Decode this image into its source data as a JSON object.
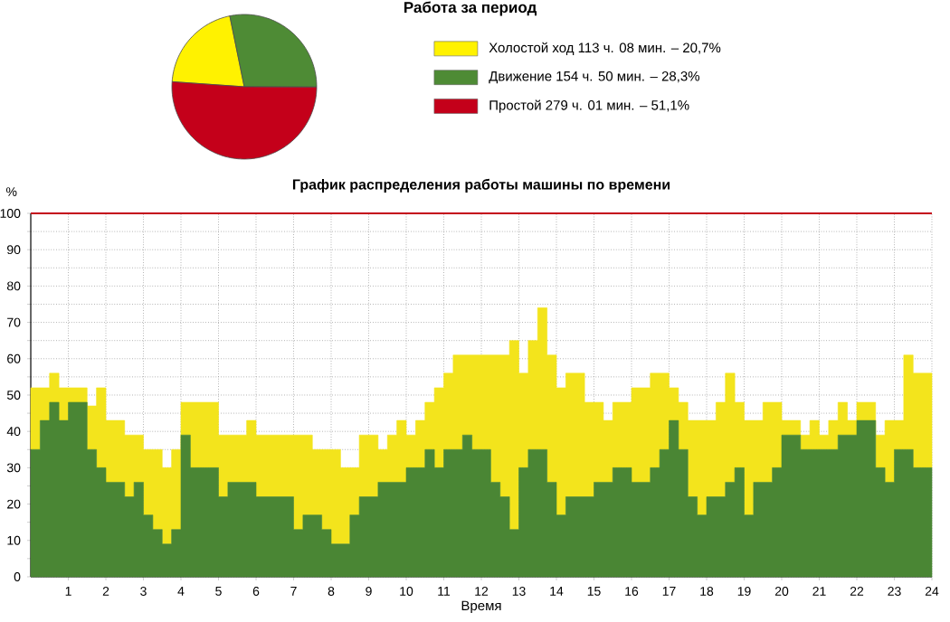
{
  "chart_data": [
    {
      "type": "pie",
      "title": "Работа за период",
      "categories": [
        "Холостой ход 113 ч. 08 мин. – 20,7%",
        "Движение 154 ч. 50 мин. – 28,3%",
        "Простой 279 ч. 01 мин. – 51,1%"
      ],
      "values": [
        20.7,
        28.3,
        51.1
      ],
      "colors": [
        "#fff200",
        "#4e8b35",
        "#c4001a"
      ],
      "legend": "right"
    },
    {
      "type": "area",
      "title": "График распределения работы машины по времени",
      "xlabel": "Время",
      "ylabel": "%",
      "stacked": true,
      "grid": true,
      "legend": false,
      "x": [
        0,
        0.25,
        0.5,
        0.75,
        1,
        1.25,
        1.5,
        1.75,
        2,
        2.25,
        2.5,
        2.75,
        3,
        3.25,
        3.5,
        3.75,
        4,
        4.25,
        4.5,
        4.75,
        5,
        5.25,
        5.5,
        5.75,
        6,
        6.25,
        6.5,
        6.75,
        7,
        7.25,
        7.5,
        7.75,
        8,
        8.25,
        8.5,
        8.75,
        9,
        9.25,
        9.5,
        9.75,
        10,
        10.25,
        10.5,
        10.75,
        11,
        11.25,
        11.5,
        11.75,
        12,
        12.25,
        12.5,
        12.75,
        13,
        13.25,
        13.5,
        13.75,
        14,
        14.25,
        14.5,
        14.75,
        15,
        15.25,
        15.5,
        15.75,
        16,
        16.25,
        16.5,
        16.75,
        17,
        17.25,
        17.5,
        17.75,
        18,
        18.25,
        18.5,
        18.75,
        19,
        19.25,
        19.5,
        19.75,
        20,
        20.25,
        20.5,
        20.75,
        21,
        21.25,
        21.5,
        21.75,
        22,
        22.25,
        22.5,
        22.75,
        23,
        23.25,
        23.5,
        23.75,
        24
      ],
      "series": [
        {
          "color": "#4a8634",
          "values": [
            35,
            43,
            48,
            43,
            48,
            48,
            35,
            30,
            26,
            26,
            22,
            26,
            17,
            13,
            9,
            13,
            39,
            30,
            30,
            30,
            22,
            26,
            26,
            26,
            22,
            22,
            22,
            22,
            13,
            17,
            17,
            13,
            9,
            9,
            17,
            22,
            22,
            26,
            26,
            26,
            30,
            30,
            35,
            30,
            35,
            35,
            39,
            35,
            35,
            26,
            22,
            13,
            30,
            35,
            35,
            26,
            17,
            22,
            22,
            22,
            26,
            26,
            30,
            30,
            26,
            26,
            30,
            35,
            43,
            35,
            22,
            17,
            22,
            22,
            26,
            30,
            17,
            26,
            26,
            30,
            39,
            39,
            35,
            35,
            35,
            35,
            39,
            39,
            43,
            43,
            30,
            26,
            35,
            35,
            30,
            30,
            30
          ]
        },
        {
          "color": "#f3e41c",
          "values": [
            17,
            9,
            8,
            9,
            4,
            4,
            12,
            22,
            17,
            17,
            17,
            13,
            18,
            22,
            21,
            22,
            9,
            18,
            18,
            18,
            17,
            13,
            13,
            17,
            17,
            17,
            17,
            17,
            26,
            22,
            18,
            22,
            26,
            21,
            13,
            17,
            17,
            9,
            13,
            17,
            9,
            13,
            13,
            22,
            21,
            26,
            22,
            26,
            26,
            35,
            39,
            52,
            26,
            30,
            39,
            35,
            35,
            34,
            34,
            26,
            22,
            17,
            18,
            18,
            26,
            26,
            26,
            21,
            9,
            13,
            21,
            26,
            21,
            26,
            30,
            18,
            26,
            17,
            22,
            18,
            4,
            4,
            4,
            8,
            4,
            8,
            9,
            4,
            5,
            5,
            9,
            17,
            8,
            26,
            26,
            26,
            26
          ]
        }
      ],
      "xlim": [
        0,
        24
      ],
      "ylim": [
        0,
        100
      ],
      "xticks": [
        1,
        2,
        3,
        4,
        5,
        6,
        7,
        8,
        9,
        10,
        11,
        12,
        13,
        14,
        15,
        16,
        17,
        18,
        19,
        20,
        21,
        22,
        23,
        24
      ],
      "yticks": [
        0,
        {
          "value": 5,
          "label": null
        },
        10,
        {
          "value": 15,
          "label": null
        },
        20,
        {
          "value": 25,
          "label": null
        },
        30,
        {
          "value": 35,
          "label": null
        },
        40,
        {
          "value": 45,
          "label": null
        },
        50,
        {
          "value": 55,
          "label": null
        },
        60,
        {
          "value": 65,
          "label": null
        },
        70,
        {
          "value": 75,
          "label": null
        },
        80,
        {
          "value": 85,
          "label": null
        },
        90,
        {
          "value": 95,
          "label": null
        },
        100
      ],
      "ref_lines": [
        {
          "axis": "y",
          "value": 100,
          "color": "#c4001a"
        }
      ]
    }
  ]
}
